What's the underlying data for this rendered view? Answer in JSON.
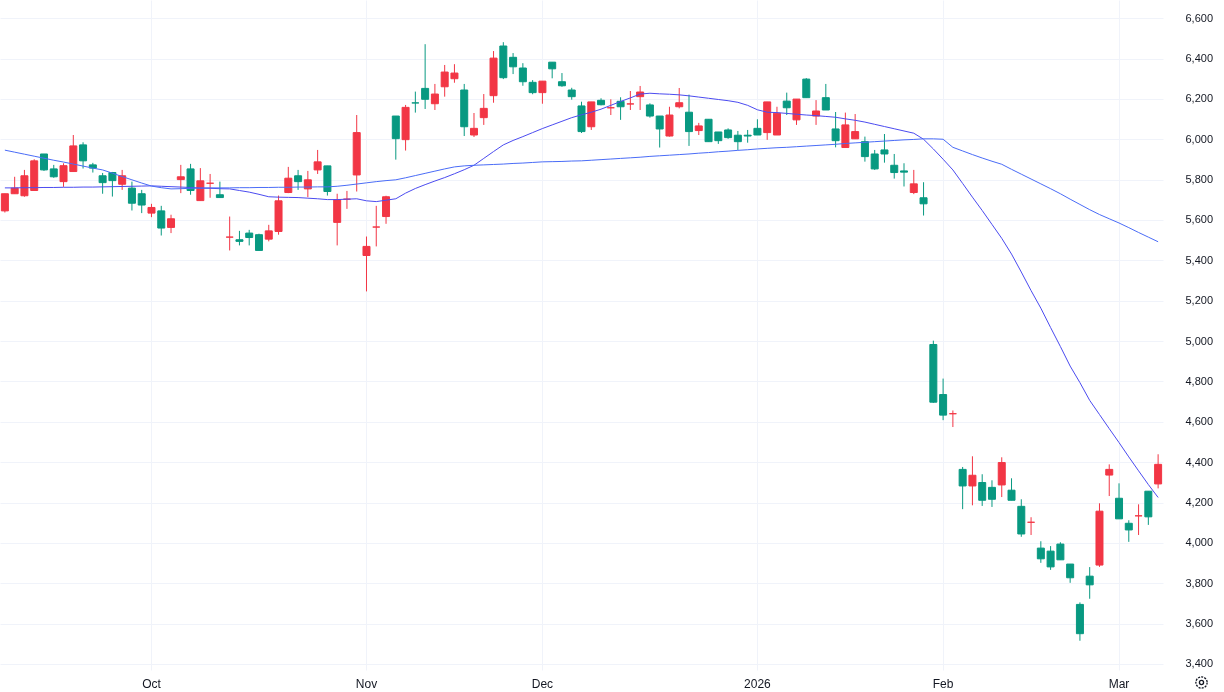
{
  "chart_data": {
    "type": "candlestick",
    "categories": [
      null,
      null,
      null,
      null,
      null,
      null,
      null,
      null,
      null,
      null,
      null,
      null,
      null,
      null,
      null,
      "Oct",
      null,
      null,
      null,
      null,
      null,
      null,
      null,
      null,
      null,
      null,
      null,
      null,
      null,
      null,
      null,
      null,
      null,
      null,
      null,
      null,
      null,
      "Nov",
      null,
      null,
      null,
      null,
      null,
      null,
      null,
      null,
      null,
      null,
      null,
      null,
      null,
      null,
      null,
      null,
      null,
      "Dec",
      null,
      null,
      null,
      null,
      null,
      null,
      null,
      null,
      null,
      null,
      null,
      null,
      null,
      null,
      null,
      null,
      null,
      null,
      null,
      null,
      null,
      "2026",
      null,
      null,
      null,
      null,
      null,
      null,
      null,
      null,
      null,
      null,
      null,
      null,
      null,
      null,
      null,
      null,
      null,
      null,
      "Feb",
      null,
      null,
      null,
      null,
      null,
      null,
      null,
      null,
      null,
      null,
      null,
      null,
      null,
      null,
      null,
      null,
      null,
      "Mar",
      null,
      null,
      null,
      null
    ],
    "ohlc": [
      [
        5645,
        5730,
        5637,
        5730
      ],
      [
        5730,
        5814,
        5730,
        5758
      ],
      [
        5720,
        5848,
        5715,
        5819
      ],
      [
        5746,
        5901,
        5746,
        5893
      ],
      [
        5927,
        5927,
        5843,
        5848
      ],
      [
        5853,
        5873,
        5809,
        5814
      ],
      [
        5790,
        5881,
        5764,
        5869
      ],
      [
        5840,
        6021,
        5840,
        5967
      ],
      [
        5972,
        5985,
        5855,
        5893
      ],
      [
        5873,
        5883,
        5835,
        5857
      ],
      [
        5819,
        5833,
        5730,
        5785
      ],
      [
        5835,
        5838,
        5716,
        5795
      ],
      [
        5777,
        5848,
        5749,
        5819
      ],
      [
        5758,
        5790,
        5647,
        5683
      ],
      [
        5730,
        5749,
        5634,
        5674
      ],
      [
        5634,
        5680,
        5614,
        5662
      ],
      [
        5645,
        5670,
        5523,
        5560
      ],
      [
        5563,
        5626,
        5535,
        5606
      ],
      [
        5800,
        5873,
        5733,
        5814
      ],
      [
        5853,
        5878,
        5725,
        5746
      ],
      [
        5696,
        5857,
        5696,
        5794
      ],
      [
        5782,
        5828,
        5710,
        5782
      ],
      [
        5725,
        5790,
        5711,
        5711
      ],
      [
        5515,
        5617,
        5449,
        5515
      ],
      [
        5502,
        5546,
        5474,
        5494
      ],
      [
        5535,
        5551,
        5474,
        5513
      ],
      [
        5527,
        5532,
        5449,
        5449
      ],
      [
        5505,
        5576,
        5494,
        5546
      ],
      [
        5543,
        5721,
        5527,
        5695
      ],
      [
        5736,
        5863,
        5733,
        5807
      ],
      [
        5819,
        5848,
        5749,
        5790
      ],
      [
        5754,
        5843,
        5713,
        5799
      ],
      [
        5848,
        5947,
        5828,
        5888
      ],
      [
        5868,
        5868,
        5721,
        5741
      ],
      [
        5588,
        5730,
        5474,
        5700
      ],
      [
        5703,
        5744,
        5655,
        5703
      ],
      [
        5823,
        6120,
        5741,
        6033
      ],
      [
        5424,
        5518,
        5246,
        5469
      ],
      [
        5565,
        5670,
        5469,
        5565
      ],
      [
        5617,
        5720,
        5581,
        5715
      ],
      [
        6115,
        6115,
        5899,
        6003
      ],
      [
        5998,
        6170,
        5944,
        6158
      ],
      [
        6180,
        6236,
        6132,
        6180
      ],
      [
        6252,
        6471,
        6150,
        6198
      ],
      [
        6176,
        6274,
        6145,
        6224
      ],
      [
        6260,
        6368,
        6211,
        6333
      ],
      [
        6300,
        6372,
        6280,
        6328
      ],
      [
        6244,
        6274,
        6016,
        6062
      ],
      [
        6021,
        6130,
        6011,
        6054
      ],
      [
        6107,
        6224,
        6071,
        6153
      ],
      [
        6216,
        6437,
        6181,
        6402
      ],
      [
        6462,
        6481,
        6298,
        6305
      ],
      [
        6406,
        6427,
        6323,
        6359
      ],
      [
        6353,
        6377,
        6265,
        6285
      ],
      [
        6282,
        6293,
        6223,
        6231
      ],
      [
        6231,
        6288,
        6176,
        6288
      ],
      [
        6382,
        6382,
        6302,
        6349
      ],
      [
        6285,
        6328,
        6260,
        6265
      ],
      [
        6244,
        6255,
        6196,
        6211
      ],
      [
        6165,
        6186,
        6031,
        6038
      ],
      [
        6062,
        6185,
        6046,
        6185
      ],
      [
        6193,
        6203,
        6168,
        6171
      ],
      [
        6156,
        6198,
        6120,
        6156
      ],
      [
        6188,
        6208,
        6096,
        6161
      ],
      [
        6175,
        6239,
        6145,
        6175
      ],
      [
        6211,
        6264,
        6145,
        6234
      ],
      [
        6170,
        6178,
        6107,
        6115
      ],
      [
        6115,
        6115,
        5959,
        6051
      ],
      [
        6016,
        6161,
        6013,
        6120
      ],
      [
        6161,
        6254,
        6153,
        6181
      ],
      [
        6134,
        6221,
        5967,
        6038
      ],
      [
        6043,
        6081,
        6021,
        6066
      ],
      [
        6099,
        6099,
        5988,
        5988
      ],
      [
        6036,
        6036,
        5977,
        5993
      ],
      [
        6046,
        6054,
        6002,
        6008
      ],
      [
        6020,
        6041,
        5947,
        5988
      ],
      [
        6020,
        6046,
        5983,
        6016
      ],
      [
        6054,
        6099,
        6021,
        6021
      ],
      [
        6033,
        6185,
        5997,
        6185
      ],
      [
        6021,
        6161,
        6021,
        6129
      ],
      [
        6189,
        6231,
        6120,
        6156
      ],
      [
        6096,
        6199,
        6071,
        6199
      ],
      [
        6298,
        6303,
        6206,
        6206
      ],
      [
        6115,
        6194,
        6071,
        6140
      ],
      [
        6206,
        6274,
        6145,
        6145
      ],
      [
        6051,
        6135,
        5960,
        5993
      ],
      [
        5959,
        6132,
        5959,
        6071
      ],
      [
        6002,
        6125,
        6002,
        6038
      ],
      [
        5988,
        6013,
        5889,
        5914
      ],
      [
        5927,
        5947,
        5848,
        5853
      ],
      [
        5947,
        6026,
        5884,
        5927
      ],
      [
        5871,
        5927,
        5805,
        5835
      ],
      [
        5843,
        5881,
        5766,
        5837
      ],
      [
        5736,
        5848,
        5728,
        5779
      ],
      [
        5710,
        5787,
        5622,
        5680
      ],
      [
        4983,
        5002,
        4694,
        4697
      ],
      [
        4735,
        4814,
        4608,
        4633
      ],
      [
        4640,
        4656,
        4574,
        4640
      ],
      [
        4364,
        4376,
        4167,
        4282
      ],
      [
        4282,
        4429,
        4186,
        4335
      ],
      [
        4299,
        4340,
        4183,
        4211
      ],
      [
        4275,
        4310,
        4178,
        4216
      ],
      [
        4287,
        4424,
        4227,
        4398
      ],
      [
        4261,
        4320,
        4211,
        4211
      ],
      [
        4181,
        4216,
        4030,
        4044
      ],
      [
        4102,
        4127,
        4039,
        4102
      ],
      [
        3974,
        4008,
        3901,
        3921
      ],
      [
        3959,
        3984,
        3866,
        3881
      ],
      [
        3994,
        4003,
        3916,
        3916
      ],
      [
        3895,
        3895,
        3802,
        3827
      ],
      [
        3695,
        3705,
        3515,
        3550
      ],
      [
        3835,
        3880,
        3723,
        3792
      ],
      [
        3890,
        4196,
        3881,
        4157
      ],
      [
        4336,
        4389,
        4232,
        4364
      ],
      [
        4221,
        4295,
        4119,
        4119
      ],
      [
        4097,
        4112,
        4005,
        4064
      ],
      [
        4134,
        4191,
        4039,
        4134
      ],
      [
        4256,
        4256,
        4089,
        4129
      ],
      [
        4292,
        4439,
        4270,
        4389
      ]
    ],
    "colors": [
      "#f23645",
      "#f23645",
      "#f23645",
      "#f23645",
      "#089981",
      "#089981",
      "#f23645",
      "#f23645",
      "#089981",
      "#089981",
      "#089981",
      "#089981",
      "#f23645",
      "#089981",
      "#089981",
      "#f23645",
      "#089981",
      "#f23645",
      "#f23645",
      "#089981",
      "#f23645",
      "#f23645",
      "#089981",
      "#f23645",
      "#089981",
      "#089981",
      "#089981",
      "#f23645",
      "#f23645",
      "#f23645",
      "#089981",
      "#f23645",
      "#f23645",
      "#089981",
      "#f23645",
      "#f23645",
      "#f23645",
      "#f23645",
      "#f23645",
      "#f23645",
      "#089981",
      "#f23645",
      "#089981",
      "#089981",
      "#f23645",
      "#f23645",
      "#f23645",
      "#089981",
      "#f23645",
      "#f23645",
      "#f23645",
      "#089981",
      "#089981",
      "#089981",
      "#089981",
      "#f23645",
      "#089981",
      "#089981",
      "#089981",
      "#089981",
      "#f23645",
      "#089981",
      "#f23645",
      "#089981",
      "#f23645",
      "#f23645",
      "#089981",
      "#089981",
      "#f23645",
      "#f23645",
      "#089981",
      "#f23645",
      "#089981",
      "#089981",
      "#089981",
      "#089981",
      "#089981",
      "#089981",
      "#f23645",
      "#f23645",
      "#089981",
      "#f23645",
      "#089981",
      "#f23645",
      "#089981",
      "#089981",
      "#f23645",
      "#f23645",
      "#089981",
      "#089981",
      "#089981",
      "#089981",
      "#089981",
      "#f23645",
      "#089981",
      "#089981",
      "#089981",
      "#f23645",
      "#089981",
      "#f23645",
      "#089981",
      "#089981",
      "#f23645",
      "#089981",
      "#089981",
      "#f23645",
      "#089981",
      "#089981",
      "#089981",
      "#089981",
      "#089981",
      "#089981",
      "#f23645",
      "#f23645",
      "#089981",
      "#089981",
      "#f23645",
      "#089981",
      "#f23645"
    ],
    "series": [
      {
        "type": "line",
        "color": "#4b4bf0",
        "values": [
          5759,
          5759,
          5760,
          5760,
          5761,
          5761,
          5762,
          5762,
          5763,
          5763,
          5764,
          5765,
          5766,
          5767,
          5768,
          5769,
          5767,
          5765,
          5763,
          5761,
          5758,
          5757,
          5755,
          5754,
          5746,
          5738,
          5727,
          5715,
          5713,
          5712,
          5711,
          5708,
          5705,
          5701,
          5701,
          5703,
          5705,
          5695,
          5691,
          5698,
          5705,
          5733,
          5756,
          5775,
          5793,
          5810,
          5829,
          5849,
          5871,
          5905,
          5939,
          5972,
          5994,
          6013,
          6033,
          6053,
          6071,
          6089,
          6107,
          6121,
          6134,
          6149,
          6168,
          6187,
          6205,
          6224,
          6228,
          6225,
          6223,
          6220,
          6215,
          6209,
          6203,
          6197,
          6191,
          6183,
          6168,
          6146,
          6134,
          6132,
          6128,
          6124,
          6120,
          6117,
          6113,
          6109,
          6101,
          6094,
          6085,
          6074,
          6063,
          6052,
          6041,
          6030,
          6000,
          5952,
          5901,
          5848,
          5781,
          5713,
          5647,
          5578,
          5509,
          5431,
          5342,
          5250,
          5163,
          5067,
          4973,
          4876,
          4794,
          4706,
          4636,
          4566,
          4497,
          4426,
          4357,
          4289,
          4225
        ]
      },
      {
        "type": "line",
        "color": "#4a6cf7",
        "values": [
          5946,
          5936,
          5926,
          5916,
          5906,
          5896,
          5887,
          5877,
          5867,
          5857,
          5848,
          5832,
          5815,
          5799,
          5783,
          5768,
          5760,
          5754,
          5755,
          5757,
          5758,
          5759,
          5759,
          5759,
          5760,
          5760,
          5761,
          5761,
          5762,
          5762,
          5763,
          5763,
          5764,
          5764,
          5767,
          5772,
          5778,
          5784,
          5790,
          5795,
          5799,
          5809,
          5820,
          5831,
          5842,
          5853,
          5863,
          5868,
          5871,
          5873,
          5875,
          5877,
          5880,
          5882,
          5885,
          5888,
          5889,
          5890,
          5892,
          5893,
          5896,
          5899,
          5902,
          5905,
          5908,
          5911,
          5915,
          5918,
          5921,
          5924,
          5927,
          5931,
          5934,
          5938,
          5941,
          5945,
          5948,
          5952,
          5955,
          5958,
          5960,
          5963,
          5966,
          5969,
          5972,
          5975,
          5979,
          5982,
          5985,
          5988,
          5991,
          5994,
          5997,
          5999,
          6002,
          6002,
          6000,
          5960,
          5942,
          5924,
          5907,
          5891,
          5876,
          5851,
          5827,
          5803,
          5779,
          5755,
          5730,
          5703,
          5677,
          5651,
          5627,
          5606,
          5585,
          5562,
          5538,
          5515,
          5492
        ]
      }
    ],
    "ylim": [
      3370,
      6690
    ],
    "yticks": [
      {
        "value": 3400,
        "label": "3,400"
      },
      {
        "value": 3600,
        "label": "3,600"
      },
      {
        "value": 3800,
        "label": "3,800"
      },
      {
        "value": 4000,
        "label": "4,000"
      },
      {
        "value": 4200,
        "label": "4,200"
      },
      {
        "value": 4400,
        "label": "4,400"
      },
      {
        "value": 4600,
        "label": "4,600"
      },
      {
        "value": 4800,
        "label": "4,800"
      },
      {
        "value": 5000,
        "label": "5,000"
      },
      {
        "value": 5200,
        "label": "5,200"
      },
      {
        "value": 5400,
        "label": "5,400"
      },
      {
        "value": 5600,
        "label": "5,600"
      },
      {
        "value": 5800,
        "label": "5,800"
      },
      {
        "value": 6000,
        "label": "6,000"
      },
      {
        "value": 6200,
        "label": "6,200"
      },
      {
        "value": 6400,
        "label": "6,400"
      },
      {
        "value": 6600,
        "label": "6,600"
      }
    ],
    "grid": true
  }
}
